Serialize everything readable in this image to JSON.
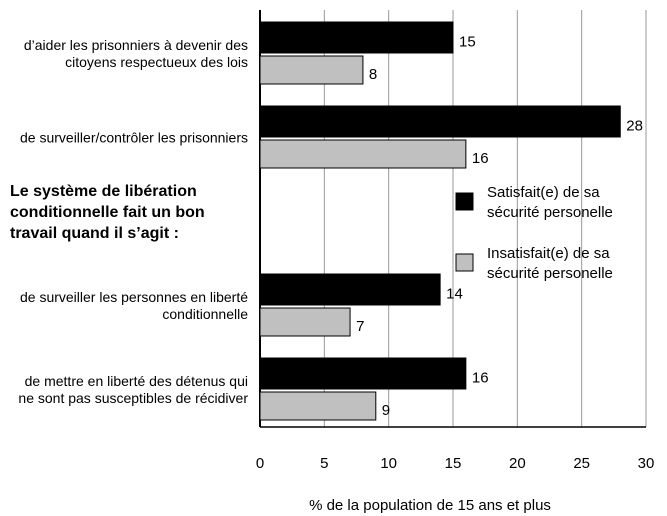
{
  "chart_data": {
    "type": "hbar",
    "annotation": "Le système de libération conditionnelle fait un bon travail quand il s’agit :",
    "categories": [
      "d’aider les prisonniers à devenir des citoyens respectueux des lois",
      "de surveiller/contrôler les prisonniers",
      "de surveiller les personnes en liberté conditionnelle",
      "de mettre en liberté des détenus qui ne sont pas susceptibles de récidiver"
    ],
    "series": [
      {
        "name": "Satisfait(e) de sa sécurité personelle",
        "color": "#000000",
        "values": [
          15,
          28,
          14,
          16
        ]
      },
      {
        "name": "Insatisfait(e) de sa sécurité personelle",
        "color": "#c0c0c0",
        "values": [
          8,
          16,
          7,
          9
        ]
      }
    ],
    "xlabel": "% de la population de 15 ans et plus",
    "xlim": [
      0,
      30
    ],
    "xticks": [
      0,
      5,
      10,
      15,
      20,
      25,
      30
    ],
    "grid": true
  }
}
